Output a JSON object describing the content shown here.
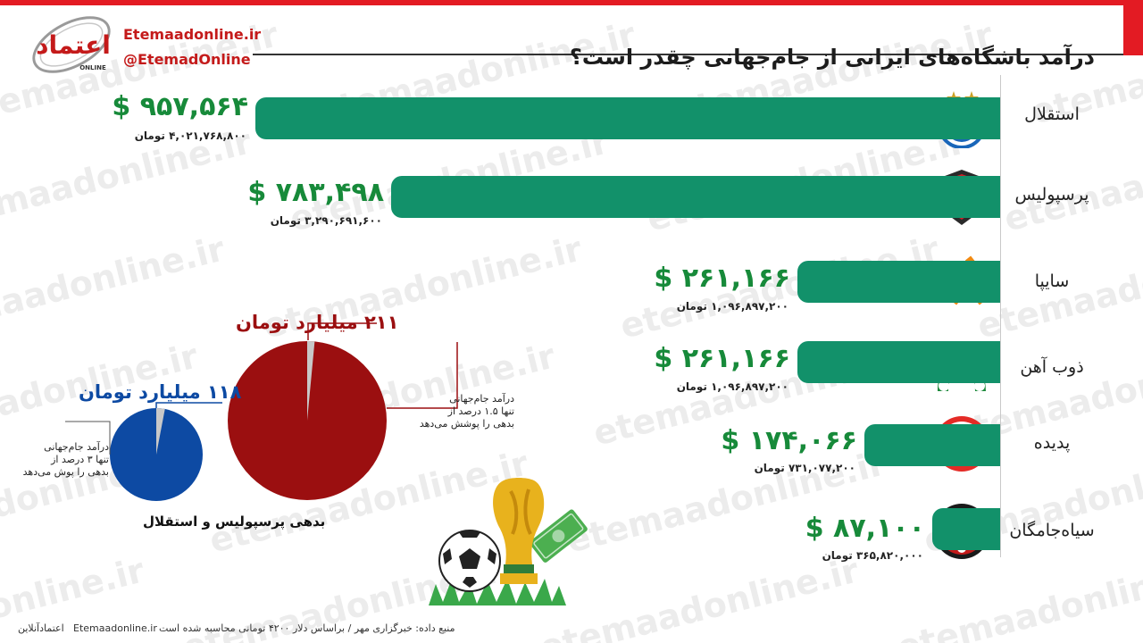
{
  "title": "درآمد باشگاه‌های ایرانی از جام‌جهانی چقدر است؟",
  "brand": {
    "site": "Etemaadonline.ir",
    "handle": "@EtemadOnline",
    "logo_text": "اعتماد",
    "logo_sub": "ONLINE",
    "watermark": "etemaadonline.ir"
  },
  "chart_data": [
    {
      "type": "bar",
      "orientation": "horizontal",
      "categories": [
        "استقلال",
        "پرسپولیس",
        "سایپا",
        "ذوب آهن",
        "پدیده",
        "سیاه‌جامگان"
      ],
      "series": [
        {
          "values": [
            957564,
            783498,
            261166,
            261166,
            174066,
            87100
          ]
        },
        {
          "values": [
            4021768800,
            3290691600,
            1096897200,
            1096897200,
            731077200,
            365820000
          ]
        }
      ],
      "labels_usd": [
        "$ ۹۵۷,۵۶۴",
        "$ ۷۸۳,۴۹۸",
        "$ ۲۶۱,۱۶۶",
        "$ ۲۶۱,۱۶۶",
        "$ ۱۷۴,۰۶۶",
        "$ ۸۷,۱۰۰"
      ],
      "labels_toman": [
        "۴,۰۲۱,۷۶۸,۸۰۰ تومان",
        "۳,۲۹۰,۶۹۱,۶۰۰ تومان",
        "۱,۰۹۶,۸۹۷,۲۰۰ تومان",
        "۱,۰۹۶,۸۹۷,۲۰۰ تومان",
        "۷۳۱,۰۷۷,۲۰۰ تومان",
        "۳۶۵,۸۲۰,۰۰۰ تومان"
      ],
      "bar_color": "#12916a"
    },
    {
      "type": "pie",
      "title": "بدهی پرسپولیس و استقلال",
      "pies": [
        {
          "label": "۲۱۱ میلیارد تومان",
          "note": [
            "درآمد جام‌جهانی",
            "تنها ۱.۵ درصد از",
            "بدهی را پوشش می‌دهد"
          ],
          "share_percent": 1.5,
          "color": "#9b0f10"
        },
        {
          "label": "۱۱۸ میلیارد تومان",
          "note": [
            "درآمد جام‌جهانی",
            "تنها ۳ درصد از",
            "بدهی را پوش می‌دهد"
          ],
          "share_percent": 3,
          "color": "#0d4aa3"
        }
      ]
    }
  ],
  "footer": {
    "source": "منبع داده: خبرگزاری مهر / براساس دلار ۴۲۰۰ تومانی محاسبه شده است",
    "site": "Etemaadonline.ir",
    "brand": "اعتمادآنلاین"
  },
  "colors": {
    "accent_red": "#e31b23",
    "bar_green": "#12916a",
    "usd_green": "#178a3a"
  }
}
